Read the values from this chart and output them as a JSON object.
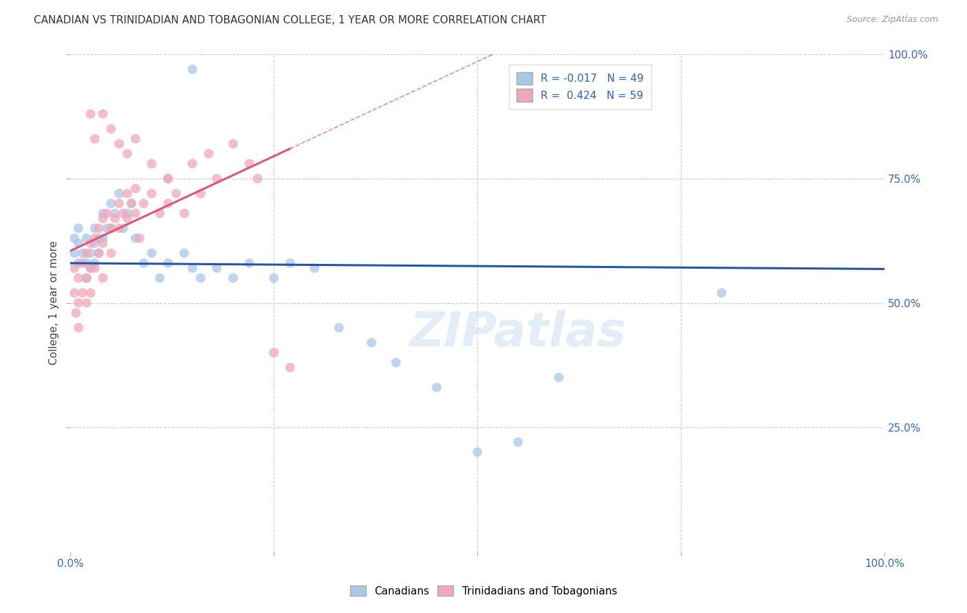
{
  "title": "CANADIAN VS TRINIDADIAN AND TOBAGONIAN COLLEGE, 1 YEAR OR MORE CORRELATION CHART",
  "source": "Source: ZipAtlas.com",
  "ylabel": "College, 1 year or more",
  "xlim": [
    0,
    1.0
  ],
  "ylim": [
    0,
    1.0
  ],
  "xtick_vals": [
    0,
    0.25,
    0.5,
    0.75,
    1.0
  ],
  "xtick_labels_show": {
    "0": "0.0%",
    "1.0": "100.0%"
  },
  "ytick_vals": [
    0.25,
    0.5,
    0.75,
    1.0
  ],
  "ytick_labels": [
    "25.0%",
    "50.0%",
    "75.0%",
    "100.0%"
  ],
  "R_blue": -0.017,
  "N_blue": 49,
  "R_pink": 0.424,
  "N_pink": 59,
  "blue_color": "#A8C8E8",
  "pink_color": "#F0A8B8",
  "blue_line_color": "#2255AA",
  "pink_line_color": "#DD5577",
  "background_color": "#ffffff",
  "watermark": "ZIPatlas",
  "legend_blue_label": "Canadians",
  "legend_pink_label": "Trinidadians and Tobagonians",
  "blue_scatter_x": [
    0.005,
    0.005,
    0.01,
    0.01,
    0.01,
    0.015,
    0.02,
    0.02,
    0.02,
    0.025,
    0.025,
    0.03,
    0.03,
    0.03,
    0.035,
    0.035,
    0.04,
    0.04,
    0.045,
    0.05,
    0.05,
    0.055,
    0.06,
    0.065,
    0.07,
    0.075,
    0.08,
    0.09,
    0.1,
    0.11,
    0.12,
    0.14,
    0.15,
    0.16,
    0.18,
    0.2,
    0.22,
    0.25,
    0.27,
    0.3,
    0.33,
    0.37,
    0.4,
    0.45,
    0.5,
    0.55,
    0.6,
    0.8,
    0.15
  ],
  "blue_scatter_y": [
    0.63,
    0.6,
    0.65,
    0.62,
    0.58,
    0.6,
    0.63,
    0.58,
    0.55,
    0.6,
    0.57,
    0.65,
    0.62,
    0.58,
    0.63,
    0.6,
    0.68,
    0.63,
    0.65,
    0.7,
    0.65,
    0.68,
    0.72,
    0.65,
    0.68,
    0.7,
    0.63,
    0.58,
    0.6,
    0.55,
    0.58,
    0.6,
    0.57,
    0.55,
    0.57,
    0.55,
    0.58,
    0.55,
    0.58,
    0.57,
    0.45,
    0.42,
    0.38,
    0.33,
    0.2,
    0.22,
    0.35,
    0.52,
    0.97
  ],
  "pink_scatter_x": [
    0.005,
    0.005,
    0.007,
    0.01,
    0.01,
    0.01,
    0.015,
    0.015,
    0.02,
    0.02,
    0.02,
    0.025,
    0.025,
    0.025,
    0.03,
    0.03,
    0.035,
    0.035,
    0.04,
    0.04,
    0.04,
    0.045,
    0.05,
    0.05,
    0.055,
    0.06,
    0.06,
    0.065,
    0.07,
    0.07,
    0.075,
    0.08,
    0.08,
    0.085,
    0.09,
    0.1,
    0.11,
    0.12,
    0.12,
    0.13,
    0.14,
    0.15,
    0.16,
    0.17,
    0.18,
    0.2,
    0.22,
    0.23,
    0.25,
    0.27,
    0.03,
    0.06,
    0.07,
    0.1,
    0.12,
    0.04,
    0.05,
    0.025,
    0.08
  ],
  "pink_scatter_y": [
    0.57,
    0.52,
    0.48,
    0.55,
    0.5,
    0.45,
    0.58,
    0.52,
    0.6,
    0.55,
    0.5,
    0.62,
    0.57,
    0.52,
    0.63,
    0.57,
    0.65,
    0.6,
    0.67,
    0.62,
    0.55,
    0.68,
    0.65,
    0.6,
    0.67,
    0.7,
    0.65,
    0.68,
    0.72,
    0.67,
    0.7,
    0.73,
    0.68,
    0.63,
    0.7,
    0.72,
    0.68,
    0.75,
    0.7,
    0.72,
    0.68,
    0.78,
    0.72,
    0.8,
    0.75,
    0.82,
    0.78,
    0.75,
    0.4,
    0.37,
    0.83,
    0.82,
    0.8,
    0.78,
    0.75,
    0.88,
    0.85,
    0.88,
    0.83
  ],
  "grid_color": "#CCCCCC",
  "grid_linestyle": "--",
  "grid_linewidth": 0.8,
  "tick_color": "#3366CC",
  "tick_fontsize": 11,
  "ylabel_fontsize": 11,
  "ylabel_color": "#444444",
  "title_fontsize": 11,
  "title_color": "#333333",
  "source_color": "#999999",
  "source_fontsize": 9,
  "watermark_color": "#C8DCF0",
  "watermark_alpha": 0.5,
  "watermark_fontsize": 50,
  "legend_fontsize": 11,
  "legend_R_color": "#3366CC",
  "scatter_size": 100,
  "scatter_alpha": 0.75,
  "line_linewidth": 2.2
}
